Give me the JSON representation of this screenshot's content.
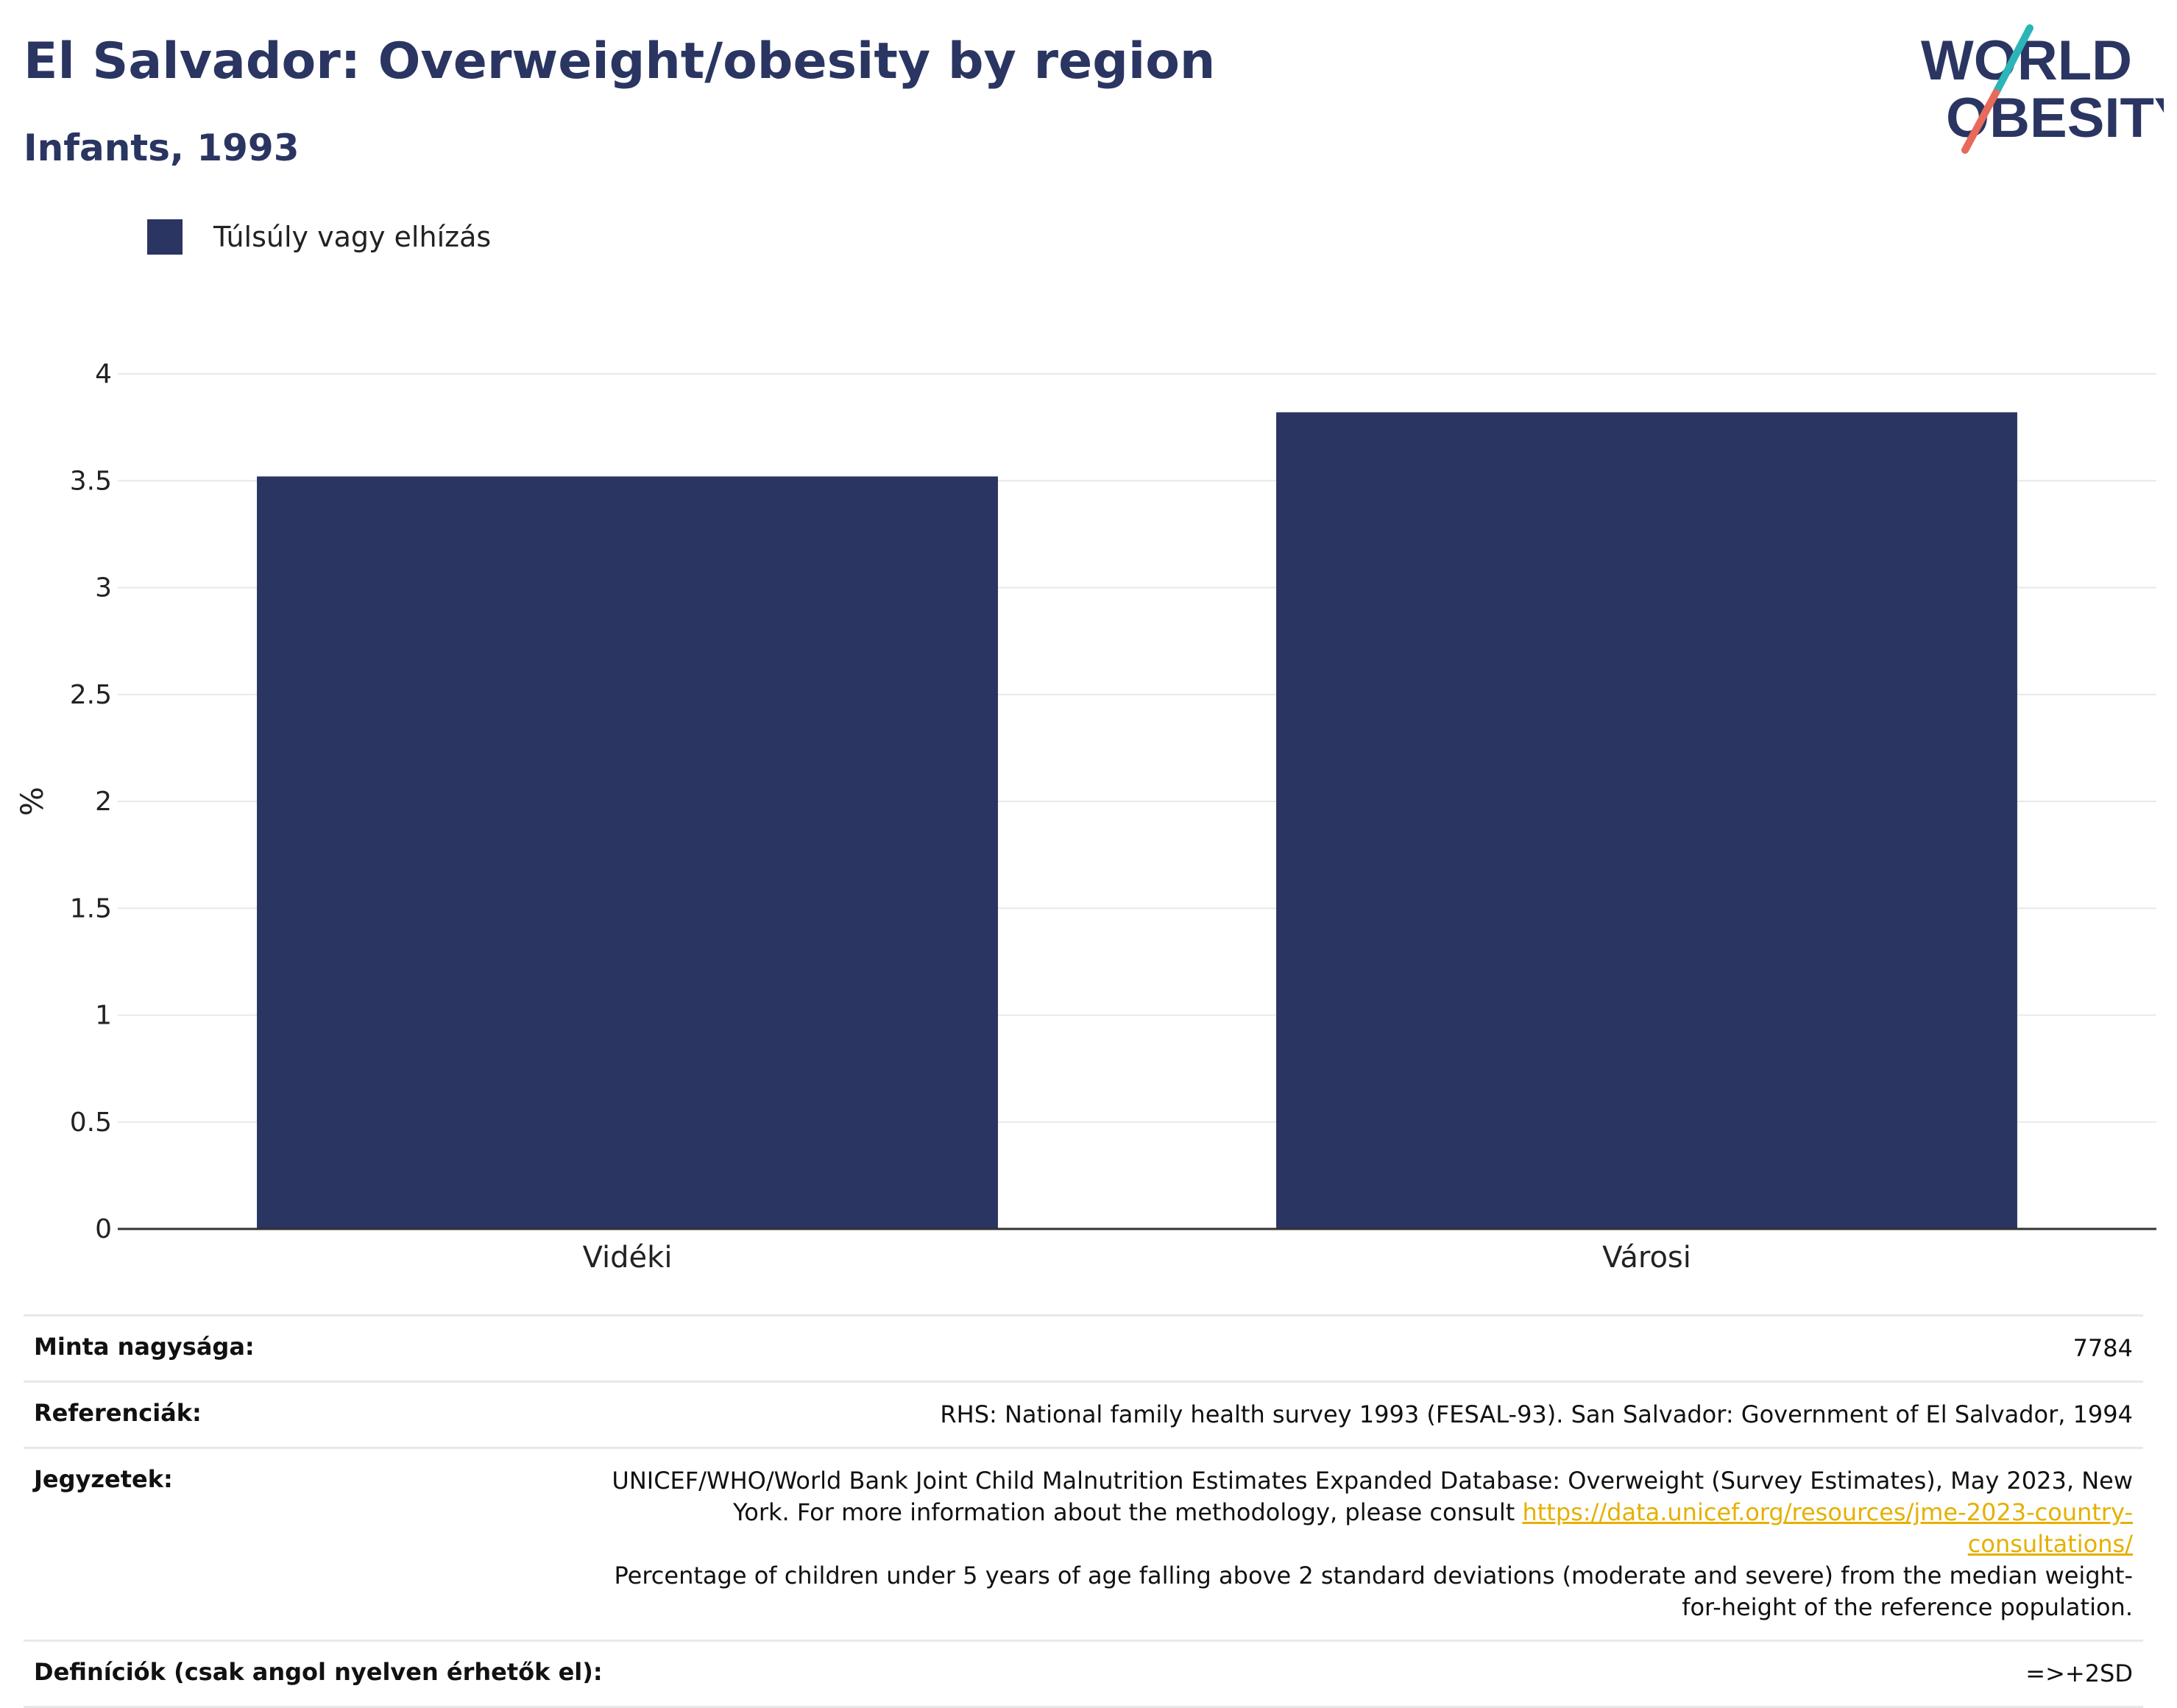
{
  "header": {
    "title": "El Salvador: Overweight/obesity by region",
    "subtitle": "Infants, 1993"
  },
  "logo": {
    "line1": "WORLD",
    "line2": "OBESITY"
  },
  "colors": {
    "bar": "#2a3562",
    "accent_teal": "#2bb5b8",
    "accent_red": "#e86a5a",
    "link": "#e5b000"
  },
  "chart_data": {
    "type": "bar",
    "categories": [
      "Vidéki",
      "Városi"
    ],
    "series": [
      {
        "name": "Túlsúly vagy elhízás",
        "values": [
          3.52,
          3.82
        ]
      }
    ],
    "ylabel": "%",
    "xlabel": "",
    "ylim": [
      0,
      4
    ],
    "yticks": [
      "0",
      "0.5",
      "1",
      "1.5",
      "2",
      "2.5",
      "3",
      "3.5",
      "4"
    ],
    "grid": true,
    "legend_position": "top-left"
  },
  "info": {
    "sample_label": "Minta nagysága:",
    "sample_value": "7784",
    "refs_label": "Referenciák:",
    "refs_value": "RHS: National family health survey 1993 (FESAL-93). San Salvador: Government of El Salvador, 1994",
    "notes_label": "Jegyzetek:",
    "notes_text1": "UNICEF/WHO/World Bank Joint Child Malnutrition Estimates Expanded Database: Overweight (Survey Estimates), May 2023, New York. For more information about the methodology, please consult",
    "notes_link": "https://data.unicef.org/resources/jme-2023-country-consultations/",
    "notes_text2": "Percentage of children under 5 years of age falling above 2 standard deviations (moderate and severe) from the median weight-for-height of the reference population.",
    "defs_label": "Definíciók (csak angol nyelven érhetők el):",
    "defs_value": "=>+2SD"
  }
}
